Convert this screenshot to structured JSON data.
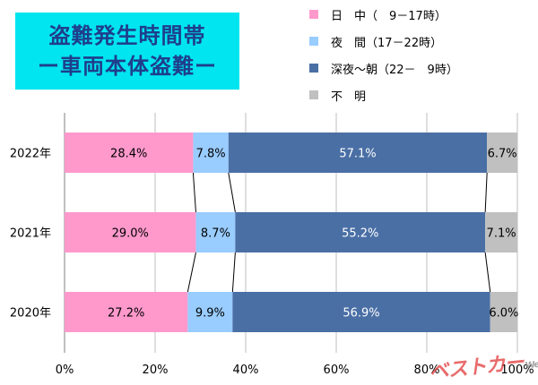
{
  "title": {
    "line1": "盗難発生時間帯",
    "line2": "ー車両本体盗難ー"
  },
  "legend": [
    {
      "label": "日　中（　9－17時）",
      "color": "#ff99cc"
    },
    {
      "label": "夜　間（17－22時）",
      "color": "#99ccff"
    },
    {
      "label": "深夜～朝（22－　9時）",
      "color": "#4a6fa5"
    },
    {
      "label": "不　明",
      "color": "#c0c0c0"
    }
  ],
  "chart_data": {
    "type": "bar",
    "orientation": "horizontal",
    "stacked": true,
    "categories": [
      "2022年",
      "2021年",
      "2020年"
    ],
    "series": [
      {
        "name": "日　中（　9－17時）",
        "color": "#ff99cc",
        "values": [
          28.4,
          29.0,
          27.2
        ],
        "labels": [
          "28.4%",
          "29.0%",
          "27.2%"
        ]
      },
      {
        "name": "夜　間（17－22時）",
        "color": "#99ccff",
        "values": [
          7.8,
          8.7,
          9.9
        ],
        "labels": [
          "7.8%",
          "8.7%",
          "9.9%"
        ]
      },
      {
        "name": "深夜～朝（22－　9時）",
        "color": "#4a6fa5",
        "values": [
          57.1,
          55.2,
          56.9
        ],
        "labels": [
          "57.1%",
          "55.2%",
          "56.9%"
        ]
      },
      {
        "name": "不　明",
        "color": "#c0c0c0",
        "values": [
          6.7,
          7.1,
          6.0
        ],
        "labels": [
          "6.7%",
          "7.1%",
          "6.0%"
        ]
      }
    ],
    "xlim": [
      0,
      100
    ],
    "xticks": [
      0,
      20,
      40,
      60,
      80,
      100
    ],
    "xtick_labels": [
      "0%",
      "20%",
      "40%",
      "60%",
      "80%",
      "100%"
    ],
    "gridlines": true,
    "series_connector_lines": true,
    "legend_position": "top-right"
  },
  "watermark": {
    "text": "ベストカー",
    "sub": "Web"
  }
}
